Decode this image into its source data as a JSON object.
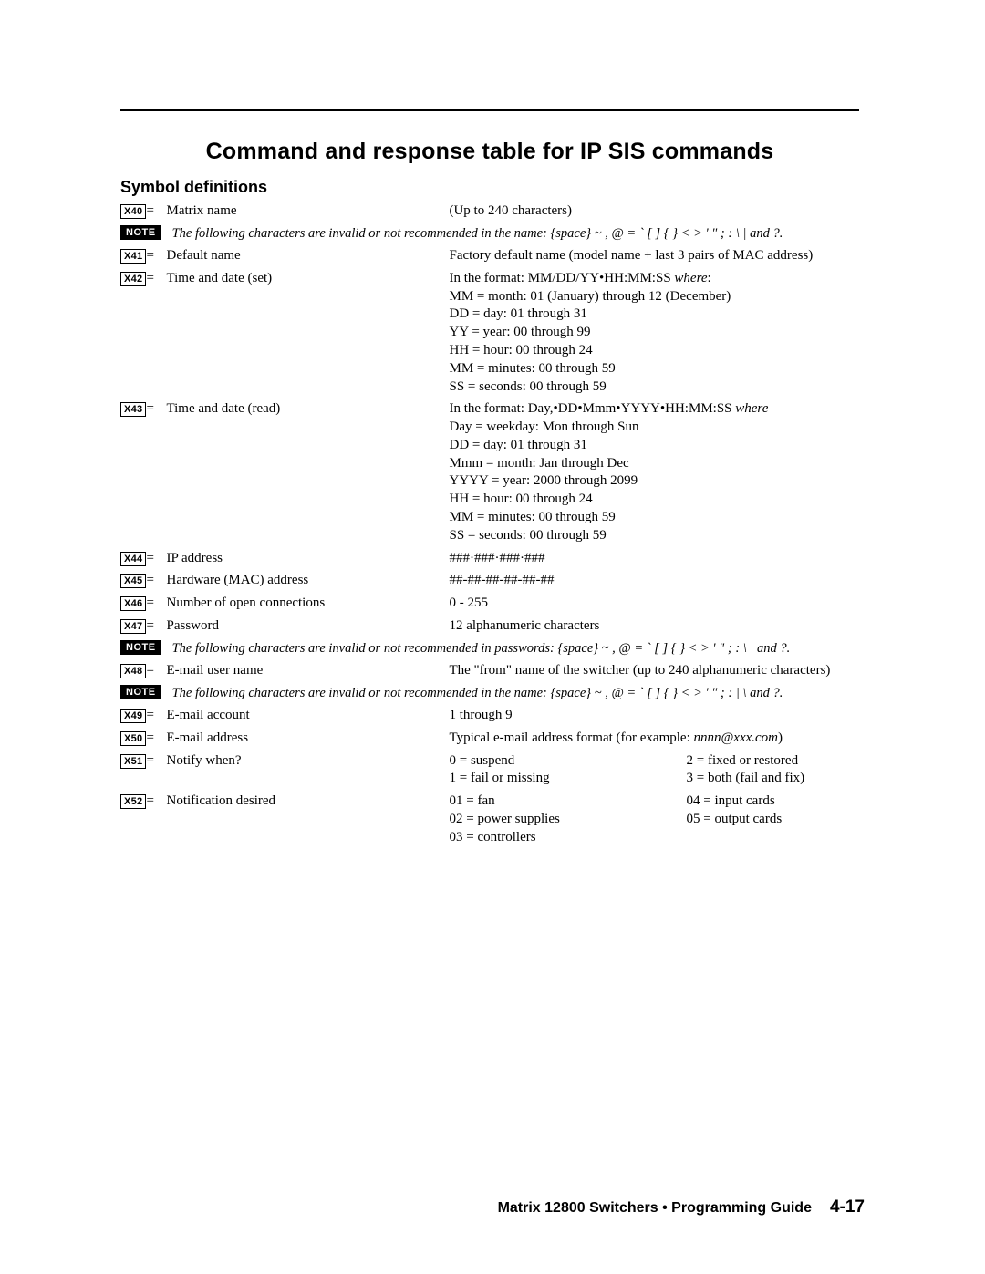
{
  "heading": "Command and response table for IP SIS commands",
  "subheading": "Symbol definitions",
  "x40": {
    "code": "X40",
    "label": "Matrix name",
    "desc": "(Up to 240 characters)"
  },
  "note1": "The following characters are invalid or not recommended in the name: {space} ~ , @ = ` [ ] { } < > ' \" ; : \\ | and ?.",
  "x41": {
    "code": "X41",
    "label": "Default name",
    "desc": "Factory default name (model name + last 3 pairs of MAC address)"
  },
  "x42": {
    "code": "X42",
    "label": "Time and date (set)",
    "desc_line1_a": "In the format: MM/DD/YY•HH:MM:SS ",
    "desc_line1_b": "where",
    "desc_line1_c": ":",
    "desc_lines": [
      "MM = month: 01 (January) through 12 (December)",
      "DD = day: 01 through 31",
      "YY = year: 00 through 99",
      "HH = hour: 00 through 24",
      "MM = minutes: 00 through 59",
      "SS = seconds: 00 through 59"
    ]
  },
  "x43": {
    "code": "X43",
    "label": "Time and date (read)",
    "desc_line1_a": "In the format: Day,•DD•Mmm•YYYY•HH:MM:SS ",
    "desc_line1_b": "where",
    "desc_lines": [
      "Day = weekday: Mon through Sun",
      "DD = day: 01 through 31",
      "Mmm = month: Jan through Dec",
      "YYYY = year: 2000 through 2099",
      "HH = hour: 00 through 24",
      "MM = minutes: 00 through 59",
      "SS = seconds: 00 through 59"
    ]
  },
  "x44": {
    "code": "X44",
    "label": "IP address",
    "desc": "###·###·###·###"
  },
  "x45": {
    "code": "X45",
    "label": "Hardware (MAC) address",
    "desc": "##-##-##-##-##-##"
  },
  "x46": {
    "code": "X46",
    "label": "Number of open connections",
    "desc": "0 - 255"
  },
  "x47": {
    "code": "X47",
    "label": "Password",
    "desc": "12 alphanumeric characters"
  },
  "note2": "The following characters are invalid or not recommended in passwords: {space} ~ , @ = ` [ ] { } < > ' \" ; : \\ | and ?.",
  "x48": {
    "code": "X48",
    "label": "E-mail user name",
    "desc": "The \"from\" name of the switcher (up to 240 alphanumeric characters)"
  },
  "note3": "The following characters are invalid or not recommended in the name: {space} ~ , @ = ` [ ] { } < > ' \" ; : | \\ and ?.",
  "x49": {
    "code": "X49",
    "label": "E-mail account",
    "desc": "1 through 9"
  },
  "x50": {
    "code": "X50",
    "label": "E-mail address",
    "desc_a": "Typical e-mail address format (for example: ",
    "desc_b": "nnnn@xxx.com",
    "desc_c": ")"
  },
  "x51": {
    "code": "X51",
    "label": "Notify when?",
    "colA": [
      "0 = suspend",
      "1 = fail or missing"
    ],
    "colB": [
      "2 = fixed or restored",
      "3 = both (fail and fix)"
    ]
  },
  "x52": {
    "code": "X52",
    "label": "Notification desired",
    "colA": [
      "01 = fan",
      "02 = power supplies",
      "03 = controllers"
    ],
    "colB": [
      "04 = input cards",
      "05 = output cards"
    ]
  },
  "footer_title": "Matrix 12800 Switchers • Programming Guide",
  "footer_page": "4-17"
}
